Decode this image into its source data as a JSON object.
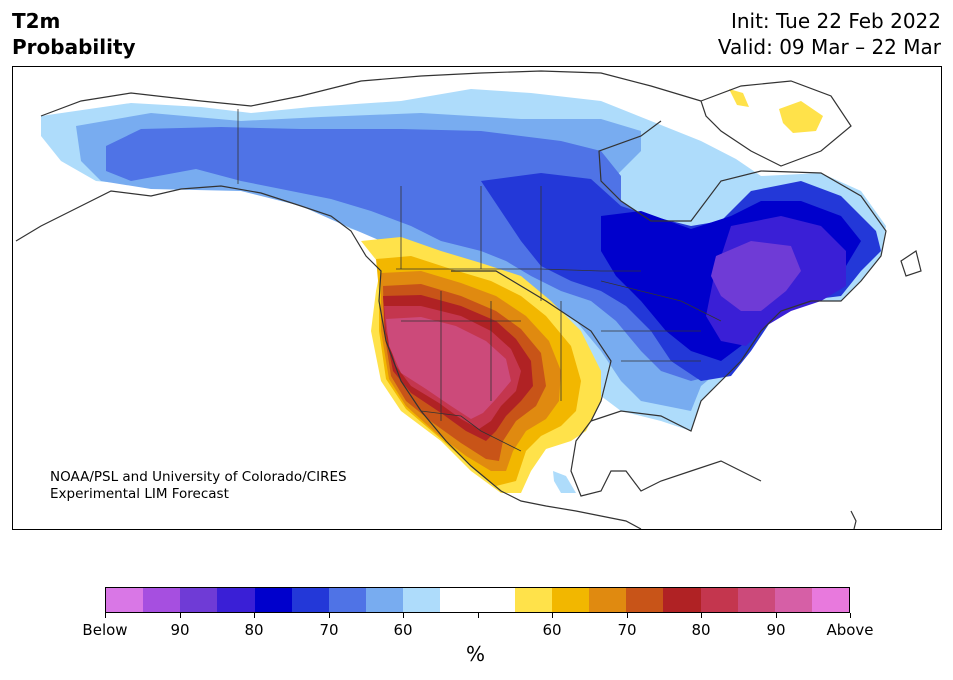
{
  "header": {
    "title_line1": "T2m",
    "title_line2": "Probability",
    "init": "Init: Tue 22 Feb 2022",
    "valid": "Valid: 09 Mar – 22 Mar"
  },
  "map": {
    "credit_line1": "NOAA/PSL and University of Colorado/CIRES",
    "credit_line2": "Experimental LIM Forecast",
    "regions": [
      {
        "name": "above-normal-west",
        "category": "above",
        "max_probability": "90"
      },
      {
        "name": "below-normal-northeast",
        "category": "below",
        "max_probability": "90"
      },
      {
        "name": "below-normal-north",
        "category": "below",
        "max_probability": "70"
      }
    ]
  },
  "colorbar": {
    "colors": [
      "#d977e6",
      "#a64fe0",
      "#6f3bd6",
      "#3a1fd6",
      "#0000cc",
      "#2338d8",
      "#4f73e6",
      "#78acf0",
      "#aedcfb",
      "#ffffff",
      "#ffffff",
      "#ffe24a",
      "#f2b700",
      "#e08a10",
      "#c85418",
      "#b02224",
      "#c4364e",
      "#cc4a7a",
      "#d65fa6",
      "#e879dd"
    ],
    "tick_labels": [
      "Below",
      "90",
      "80",
      "70",
      "60",
      "",
      "60",
      "70",
      "80",
      "90",
      "Above"
    ],
    "unit": "%"
  }
}
